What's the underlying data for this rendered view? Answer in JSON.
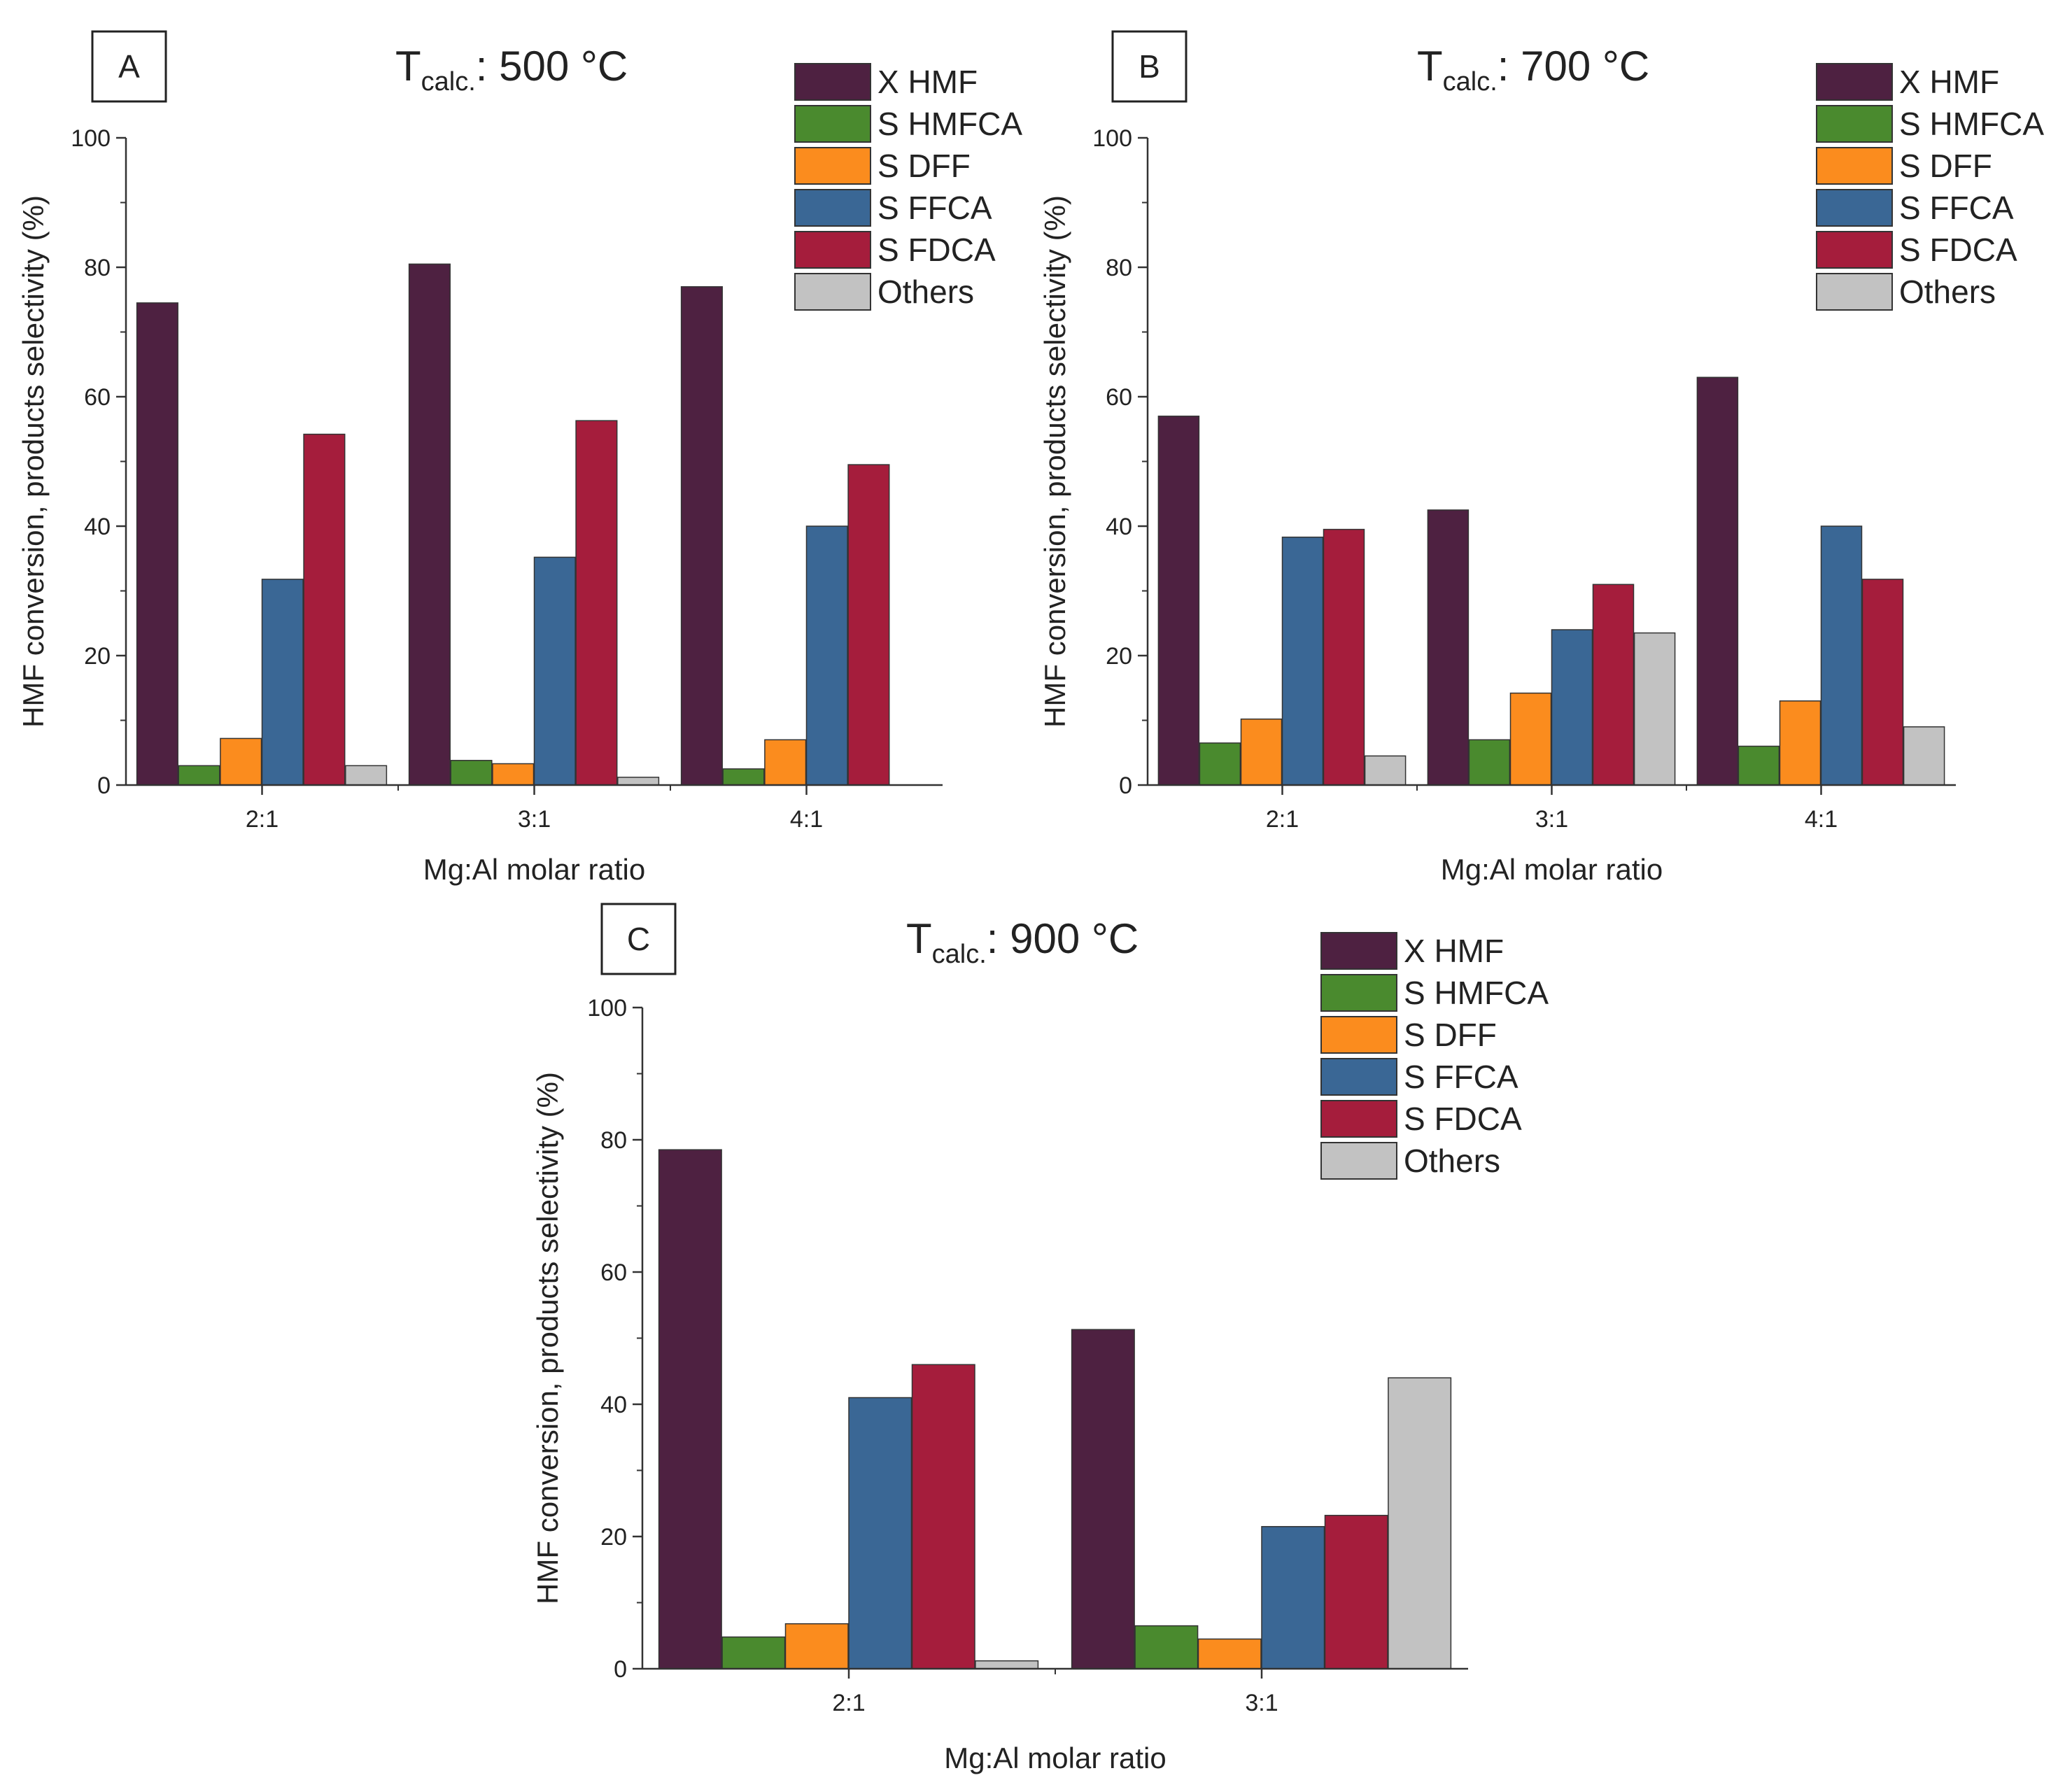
{
  "chart_data": [
    {
      "type": "bar",
      "panel_label": "A",
      "title": {
        "prefix": "T",
        "subscript": "calc.",
        "suffix": ": 500 °C"
      },
      "xlabel": "Mg:Al molar ratio",
      "ylabel": "HMF conversion, products selectivity (%)",
      "ylim": [
        0,
        100
      ],
      "yticks": [
        "0",
        "20",
        "40",
        "60",
        "80",
        "100"
      ],
      "grid": false,
      "legend_position": "top-right",
      "categories": [
        "2:1",
        "3:1",
        "4:1"
      ],
      "series": [
        {
          "name": "X HMF",
          "color": "#4e2141",
          "values": [
            74.5,
            80.5,
            77
          ]
        },
        {
          "name": "S HMFCA",
          "color": "#4a8a2e",
          "values": [
            3,
            3.8,
            2.5
          ]
        },
        {
          "name": "S DFF",
          "color": "#fb8c1e",
          "values": [
            7.2,
            3.3,
            7
          ]
        },
        {
          "name": "S FFCA",
          "color": "#3a6795",
          "values": [
            31.8,
            35.2,
            40
          ]
        },
        {
          "name": "S FDCA",
          "color": "#a51d3c",
          "values": [
            54.2,
            56.3,
            49.5
          ]
        },
        {
          "name": "Others",
          "color": "#c2c2c2",
          "values": [
            3,
            1.2,
            0
          ]
        }
      ]
    },
    {
      "type": "bar",
      "panel_label": "B",
      "title": {
        "prefix": "T",
        "subscript": "calc.",
        "suffix": ": 700 °C"
      },
      "xlabel": "Mg:Al molar ratio",
      "ylabel": "HMF conversion, products selectivity (%)",
      "ylim": [
        0,
        100
      ],
      "yticks": [
        "0",
        "20",
        "40",
        "60",
        "80",
        "100"
      ],
      "grid": false,
      "legend_position": "top-right",
      "categories": [
        "2:1",
        "3:1",
        "4:1"
      ],
      "series": [
        {
          "name": "X HMF",
          "color": "#4e2141",
          "values": [
            57,
            42.5,
            63
          ]
        },
        {
          "name": "S HMFCA",
          "color": "#4a8a2e",
          "values": [
            6.5,
            7,
            6
          ]
        },
        {
          "name": "S DFF",
          "color": "#fb8c1e",
          "values": [
            10.2,
            14.2,
            13
          ]
        },
        {
          "name": "S FFCA",
          "color": "#3a6795",
          "values": [
            38.3,
            24,
            40
          ]
        },
        {
          "name": "S FDCA",
          "color": "#a51d3c",
          "values": [
            39.5,
            31,
            31.8
          ]
        },
        {
          "name": "Others",
          "color": "#c2c2c2",
          "values": [
            4.5,
            23.5,
            9
          ]
        }
      ]
    },
    {
      "type": "bar",
      "panel_label": "C",
      "title": {
        "prefix": "T",
        "subscript": "calc.",
        "suffix": ": 900 °C"
      },
      "xlabel": "Mg:Al molar ratio",
      "ylabel": "HMF conversion, products selectivity (%)",
      "ylim": [
        0,
        100
      ],
      "yticks": [
        "0",
        "20",
        "40",
        "60",
        "80",
        "100"
      ],
      "grid": false,
      "legend_position": "top-right",
      "categories": [
        "2:1",
        "3:1"
      ],
      "series": [
        {
          "name": "X HMF",
          "color": "#4e2141",
          "values": [
            78.5,
            51.3
          ]
        },
        {
          "name": "S HMFCA",
          "color": "#4a8a2e",
          "values": [
            4.8,
            6.5
          ]
        },
        {
          "name": "S DFF",
          "color": "#fb8c1e",
          "values": [
            6.8,
            4.5
          ]
        },
        {
          "name": "S FFCA",
          "color": "#3a6795",
          "values": [
            41,
            21.5
          ]
        },
        {
          "name": "S FDCA",
          "color": "#a51d3c",
          "values": [
            46,
            23.2
          ]
        },
        {
          "name": "Others",
          "color": "#c2c2c2",
          "values": [
            1.2,
            44
          ]
        }
      ]
    }
  ]
}
